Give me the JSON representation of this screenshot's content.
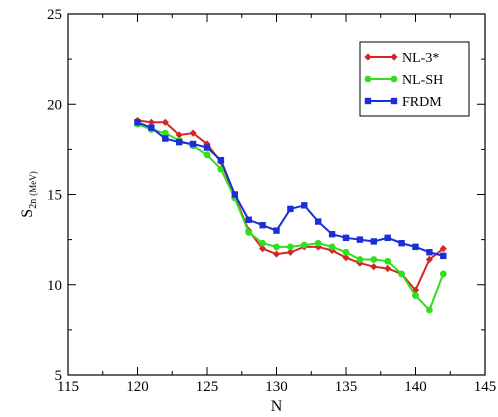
{
  "chart_data": {
    "type": "line",
    "xlabel": "N",
    "ylabel_main": "S",
    "ylabel_sub": "2n",
    "ylabel_unit": "(MeV)",
    "xlim": [
      115,
      145
    ],
    "ylim": [
      5,
      25
    ],
    "xticks": [
      115,
      120,
      125,
      130,
      135,
      140,
      145
    ],
    "yticks": [
      5,
      10,
      15,
      20,
      25
    ],
    "grid": false,
    "legend_position": "top-right",
    "series": [
      {
        "name": "NL-3*",
        "color": "#d32626",
        "marker": "diamond",
        "x": [
          120,
          121,
          122,
          123,
          124,
          125,
          126,
          127,
          128,
          129,
          130,
          131,
          132,
          133,
          134,
          135,
          136,
          137,
          138,
          139,
          140,
          141,
          142
        ],
        "y": [
          19.1,
          19.0,
          19.0,
          18.3,
          18.4,
          17.8,
          16.8,
          14.9,
          13.0,
          12.0,
          11.7,
          11.8,
          12.1,
          12.1,
          11.9,
          11.5,
          11.2,
          11.0,
          10.9,
          10.6,
          9.7,
          11.4,
          12.0
        ]
      },
      {
        "name": "NL-SH",
        "color": "#33dd1f",
        "marker": "circle",
        "x": [
          120,
          121,
          122,
          123,
          124,
          125,
          126,
          127,
          128,
          129,
          130,
          131,
          132,
          133,
          134,
          135,
          136,
          137,
          138,
          139,
          140,
          141,
          142
        ],
        "y": [
          18.9,
          18.6,
          18.4,
          18.0,
          17.7,
          17.2,
          16.4,
          14.8,
          12.9,
          12.3,
          12.1,
          12.1,
          12.2,
          12.3,
          12.1,
          11.8,
          11.4,
          11.4,
          11.3,
          10.6,
          9.4,
          8.6,
          10.6
        ]
      },
      {
        "name": "FRDM",
        "color": "#1a2fd6",
        "marker": "square",
        "x": [
          120,
          121,
          122,
          123,
          124,
          125,
          126,
          127,
          128,
          129,
          130,
          131,
          132,
          133,
          134,
          135,
          136,
          137,
          138,
          139,
          140,
          141,
          142
        ],
        "y": [
          19.0,
          18.7,
          18.1,
          17.9,
          17.8,
          17.6,
          16.9,
          15.0,
          13.6,
          13.3,
          13.0,
          14.2,
          14.4,
          13.5,
          12.8,
          12.6,
          12.5,
          12.4,
          12.6,
          12.3,
          12.1,
          11.8,
          11.6
        ]
      }
    ]
  }
}
